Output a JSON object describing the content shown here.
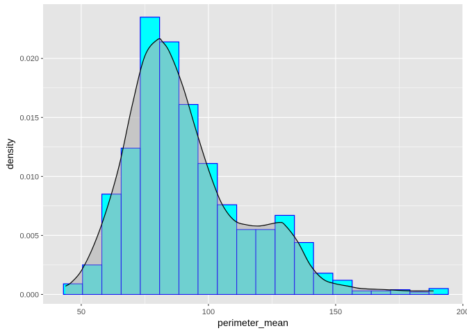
{
  "chart_data": {
    "type": "bar",
    "subtype": "histogram-with-density",
    "xlabel": "perimeter_mean",
    "ylabel": "density",
    "xlim": [
      35,
      200
    ],
    "ylim": [
      -0.0008,
      0.0246
    ],
    "x_ticks": [
      50,
      100,
      150,
      200
    ],
    "y_ticks": [
      0.0,
      0.005,
      0.01,
      0.015,
      0.02
    ],
    "y_tick_labels": [
      "0.000",
      "0.005",
      "0.010",
      "0.015",
      "0.020"
    ],
    "grid": true,
    "legend": "none",
    "colors": {
      "panel_background": "#e5e5e5",
      "grid": "#ffffff",
      "bar_fill": "#00ffff",
      "bar_outline": "#0000ff",
      "density_fill": "#b3b3b3",
      "density_line": "#000000"
    },
    "bins": {
      "x_start": [
        43.0,
        50.5,
        58.1,
        65.7,
        73.2,
        80.8,
        88.4,
        95.9,
        103.5,
        111.1,
        118.6,
        126.2,
        133.8,
        141.3,
        148.9,
        156.5,
        164.0,
        171.6,
        179.2,
        186.7
      ],
      "x_end": [
        50.5,
        58.1,
        65.7,
        73.2,
        80.8,
        88.4,
        95.9,
        103.5,
        111.1,
        118.6,
        126.2,
        133.8,
        141.3,
        148.9,
        156.5,
        164.0,
        171.6,
        179.2,
        186.7,
        194.3
      ],
      "values": [
        0.0009,
        0.0025,
        0.0085,
        0.0124,
        0.0235,
        0.0214,
        0.0161,
        0.0111,
        0.0076,
        0.0055,
        0.0055,
        0.0067,
        0.0044,
        0.0018,
        0.0012,
        0.0003,
        0.0003,
        0.0004,
        0.0002,
        0.0005
      ]
    },
    "density": {
      "x": [
        43.8,
        46,
        50,
        55,
        60,
        65,
        70,
        75,
        80,
        82,
        85,
        90,
        95,
        100,
        105,
        110,
        115,
        120,
        125,
        128,
        130,
        135,
        140,
        145,
        150,
        155,
        160,
        170,
        180,
        188.5
      ],
      "y": [
        0.0007,
        0.001,
        0.002,
        0.0042,
        0.0072,
        0.011,
        0.016,
        0.0202,
        0.0216,
        0.0214,
        0.0204,
        0.0176,
        0.014,
        0.0106,
        0.0078,
        0.0063,
        0.0059,
        0.0058,
        0.006,
        0.0061,
        0.0059,
        0.0045,
        0.0025,
        0.0013,
        0.0009,
        0.0007,
        0.0005,
        0.0004,
        0.0003,
        0.0003
      ]
    }
  }
}
